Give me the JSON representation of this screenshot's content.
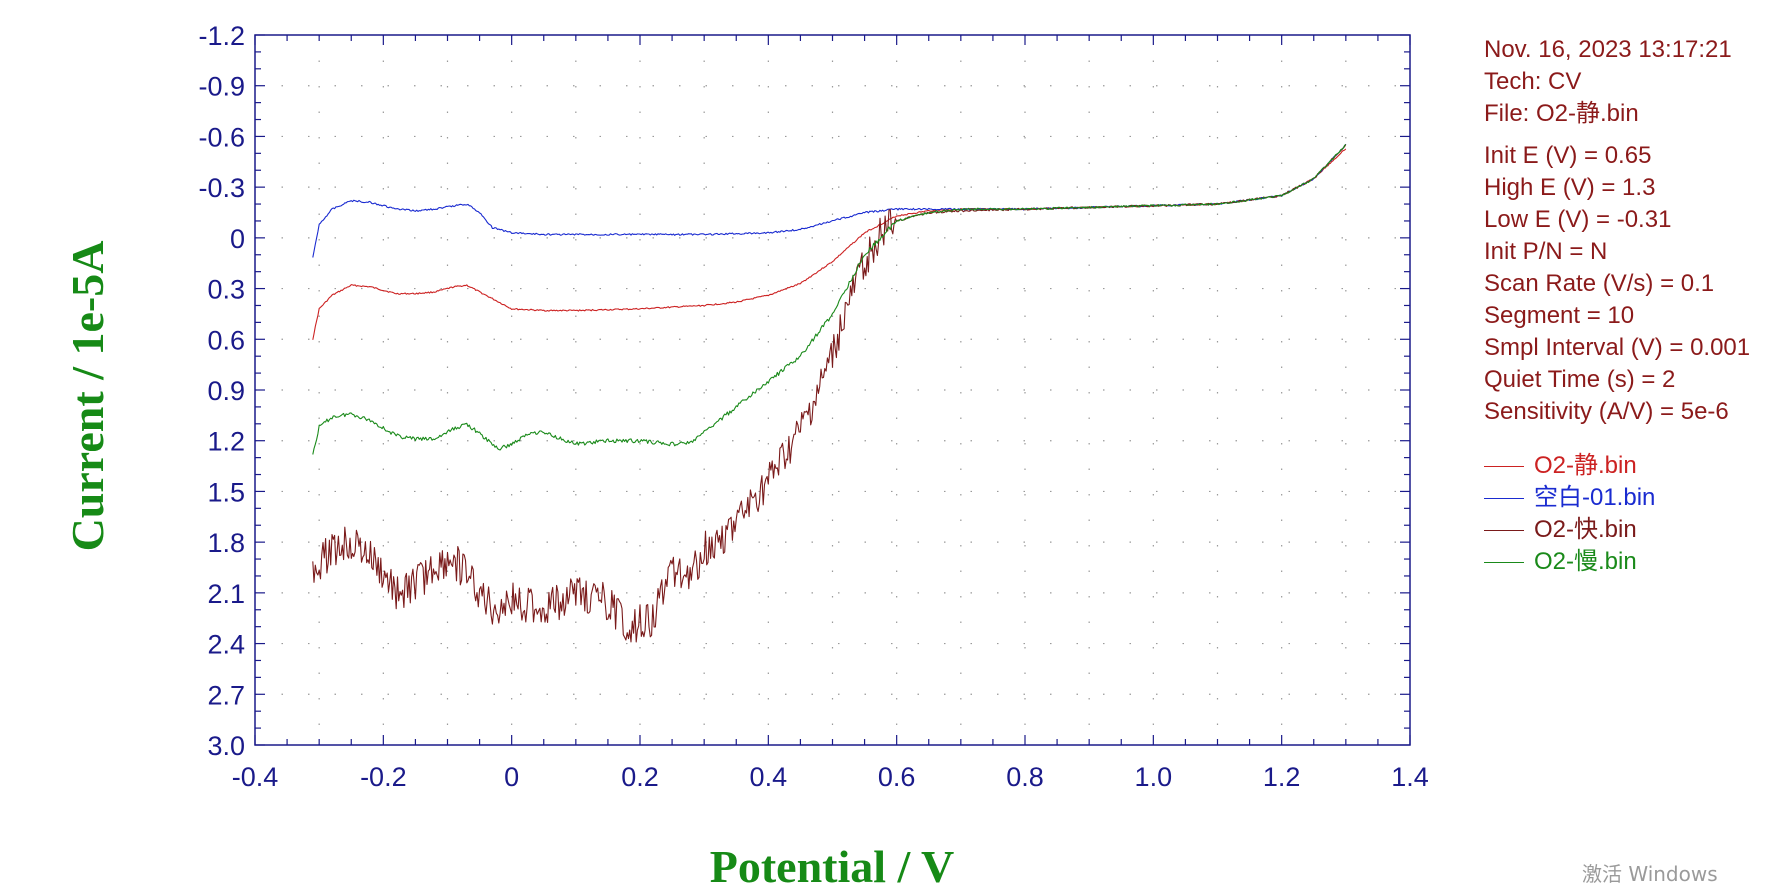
{
  "info": {
    "date": "Nov. 16, 2023   13:17:21",
    "tech": "Tech: CV",
    "file": "File: O2-静.bin",
    "params": [
      "Init E (V) = 0.65",
      "High E (V) = 1.3",
      "Low E (V) = -0.31",
      "Init P/N = N",
      "Scan Rate (V/s) = 0.1",
      "Segment = 10",
      "Smpl Interval (V) = 0.001",
      "Quiet Time (s) = 2",
      "Sensitivity (A/V) = 5e-6"
    ]
  },
  "watermark": "激活 Windows",
  "colors": {
    "axis_and_ticks": "#1a1a8a",
    "axis_title": "#168a16",
    "info_text": "#8b1a1a",
    "grid_dots": "#9a9a9a"
  },
  "chart_data": {
    "type": "line",
    "title": "",
    "xlabel": "Potential / V",
    "ylabel": "Current / 1e-5A",
    "xlim": [
      -0.4,
      1.4
    ],
    "ylim": [
      3.0,
      -1.2
    ],
    "y_axis_inverted": true,
    "xticks": [
      "-0.4",
      "-0.2",
      "0",
      "0.2",
      "0.4",
      "0.6",
      "0.8",
      "1.0",
      "1.2",
      "1.4"
    ],
    "yticks": [
      "-1.2",
      "-0.9",
      "-0.6",
      "-0.3",
      "0",
      "0.3",
      "0.6",
      "0.9",
      "1.2",
      "1.5",
      "1.8",
      "2.1",
      "2.4",
      "2.7",
      "3.0"
    ],
    "grid": "dotted",
    "legend_position": "right",
    "series": [
      {
        "name": "O2-静.bin",
        "color": "#cc2222",
        "noise": 0.004,
        "x": [
          -0.31,
          -0.3,
          -0.28,
          -0.25,
          -0.22,
          -0.18,
          -0.15,
          -0.12,
          -0.09,
          -0.07,
          -0.05,
          -0.02,
          0.0,
          0.05,
          0.1,
          0.2,
          0.3,
          0.35,
          0.4,
          0.45,
          0.5,
          0.55,
          0.6,
          0.65,
          0.7,
          0.8,
          0.9,
          1.0,
          1.1,
          1.2,
          1.25,
          1.3
        ],
        "y": [
          0.6,
          0.42,
          0.34,
          0.28,
          0.29,
          0.33,
          0.33,
          0.32,
          0.29,
          0.28,
          0.32,
          0.38,
          0.42,
          0.43,
          0.43,
          0.42,
          0.4,
          0.38,
          0.34,
          0.27,
          0.14,
          -0.03,
          -0.13,
          -0.16,
          -0.17,
          -0.17,
          -0.18,
          -0.19,
          -0.2,
          -0.25,
          -0.35,
          -0.53
        ]
      },
      {
        "name": "空白-01.bin",
        "color": "#1a2bd0",
        "noise": 0.005,
        "x": [
          -0.31,
          -0.3,
          -0.28,
          -0.25,
          -0.22,
          -0.18,
          -0.15,
          -0.12,
          -0.09,
          -0.07,
          -0.05,
          -0.03,
          0.0,
          0.05,
          0.1,
          0.2,
          0.3,
          0.4,
          0.45,
          0.5,
          0.55,
          0.6,
          0.65,
          0.7,
          0.8,
          0.9,
          1.0,
          1.1,
          1.2,
          1.25,
          1.3
        ],
        "y": [
          0.12,
          -0.08,
          -0.17,
          -0.22,
          -0.21,
          -0.17,
          -0.16,
          -0.17,
          -0.19,
          -0.2,
          -0.15,
          -0.06,
          -0.03,
          -0.02,
          -0.02,
          -0.02,
          -0.02,
          -0.03,
          -0.05,
          -0.1,
          -0.15,
          -0.17,
          -0.17,
          -0.17,
          -0.17,
          -0.18,
          -0.19,
          -0.2,
          -0.25,
          -0.35,
          -0.55
        ]
      },
      {
        "name": "O2-快.bin",
        "color": "#7a1a1a",
        "noise": 0.11,
        "x": [
          -0.31,
          -0.28,
          -0.25,
          -0.22,
          -0.18,
          -0.15,
          -0.12,
          -0.09,
          -0.06,
          -0.03,
          0.0,
          0.05,
          0.1,
          0.15,
          0.18,
          0.22,
          0.25,
          0.28,
          0.3,
          0.35,
          0.4,
          0.45,
          0.48,
          0.5,
          0.52,
          0.55,
          0.57,
          0.6,
          0.65,
          0.7,
          0.8,
          0.9,
          1.0,
          1.1,
          1.2,
          1.25,
          1.3
        ],
        "y": [
          1.95,
          1.85,
          1.8,
          1.9,
          2.1,
          2.05,
          1.95,
          1.9,
          2.05,
          2.2,
          2.15,
          2.2,
          2.1,
          2.15,
          2.3,
          2.25,
          1.95,
          2.0,
          1.85,
          1.7,
          1.45,
          1.15,
          0.9,
          0.7,
          0.45,
          0.15,
          0.0,
          -0.1,
          -0.15,
          -0.16,
          -0.17,
          -0.18,
          -0.19,
          -0.2,
          -0.25,
          -0.35,
          -0.55
        ]
      },
      {
        "name": "O2-慢.bin",
        "color": "#1a8a1a",
        "noise": 0.012,
        "x": [
          -0.31,
          -0.3,
          -0.28,
          -0.25,
          -0.22,
          -0.18,
          -0.15,
          -0.12,
          -0.09,
          -0.07,
          -0.05,
          -0.02,
          0.0,
          0.03,
          0.05,
          0.1,
          0.15,
          0.2,
          0.25,
          0.28,
          0.3,
          0.35,
          0.4,
          0.45,
          0.5,
          0.55,
          0.6,
          0.65,
          0.7,
          0.8,
          0.9,
          1.0,
          1.1,
          1.2,
          1.25,
          1.3
        ],
        "y": [
          1.28,
          1.12,
          1.06,
          1.04,
          1.08,
          1.17,
          1.19,
          1.19,
          1.13,
          1.1,
          1.16,
          1.25,
          1.22,
          1.15,
          1.15,
          1.22,
          1.2,
          1.2,
          1.22,
          1.21,
          1.15,
          1.0,
          0.85,
          0.7,
          0.45,
          0.1,
          -0.1,
          -0.15,
          -0.17,
          -0.17,
          -0.18,
          -0.19,
          -0.2,
          -0.25,
          -0.35,
          -0.55
        ]
      }
    ]
  }
}
